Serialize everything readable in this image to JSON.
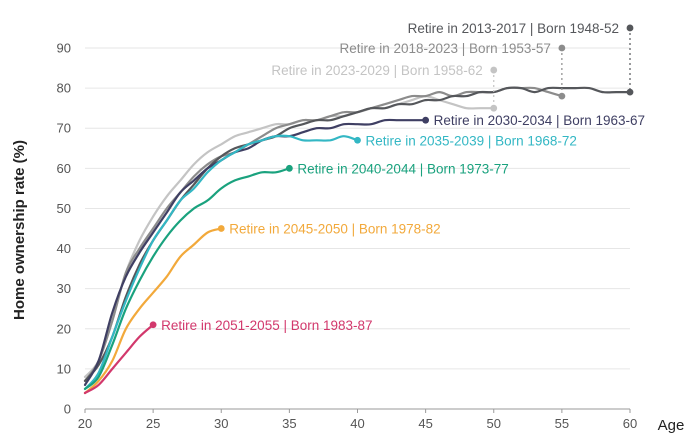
{
  "chart_data": {
    "type": "line",
    "title": "",
    "xlabel": "Age",
    "ylabel": "Home ownership rate (%)",
    "xlim": [
      20,
      60
    ],
    "ylim": [
      0,
      90
    ],
    "x_ticks": [
      20,
      25,
      30,
      35,
      40,
      45,
      50,
      55,
      60
    ],
    "y_ticks": [
      0,
      10,
      20,
      30,
      40,
      50,
      60,
      70,
      80,
      90
    ],
    "grid": "horizontal",
    "legend": "direct labels at line ends",
    "series": [
      {
        "name": "Retire in 2013-2017 | Born 1948-52",
        "color": "#55575b",
        "x": [
          20,
          21,
          22,
          23,
          24,
          25,
          26,
          27,
          28,
          29,
          30,
          31,
          32,
          33,
          34,
          35,
          36,
          37,
          38,
          39,
          40,
          41,
          42,
          43,
          44,
          45,
          46,
          47,
          48,
          49,
          50,
          51,
          52,
          53,
          54,
          55,
          56,
          57,
          58,
          59,
          60
        ],
        "y": [
          7,
          11,
          18,
          28,
          36,
          42,
          47,
          52,
          56,
          60,
          63,
          65,
          66,
          67,
          68,
          70,
          71,
          72,
          72,
          73,
          74,
          75,
          75,
          76,
          76,
          77,
          77,
          78,
          78,
          79,
          79,
          80,
          80,
          79,
          80,
          80,
          80,
          80,
          79,
          79,
          79
        ],
        "end_label_y": 95
      },
      {
        "name": "Retire in 2018-2023 | Born 1953-57",
        "color": "#8c8c8c",
        "x": [
          20,
          21,
          22,
          23,
          24,
          25,
          26,
          27,
          28,
          29,
          30,
          31,
          32,
          33,
          34,
          35,
          36,
          37,
          38,
          39,
          40,
          41,
          42,
          43,
          44,
          45,
          46,
          47,
          48,
          49,
          50,
          51,
          52,
          53,
          54,
          55
        ],
        "y": [
          7,
          12,
          22,
          34,
          40,
          45,
          50,
          54,
          58,
          61,
          63,
          64,
          66,
          68,
          70,
          71,
          72,
          72,
          73,
          74,
          74,
          75,
          76,
          77,
          78,
          78,
          79,
          78,
          79,
          79,
          79,
          80,
          80,
          80,
          79,
          78
        ],
        "end_label_y": 90
      },
      {
        "name": "Retire in 2023-2029 | Born 1958-62",
        "color": "#c4c4c4",
        "x": [
          20,
          21,
          22,
          23,
          24,
          25,
          26,
          27,
          28,
          29,
          30,
          31,
          32,
          33,
          34,
          35,
          36,
          37,
          38,
          39,
          40,
          41,
          42,
          43,
          44,
          45,
          46,
          47,
          48,
          49,
          50
        ],
        "y": [
          8,
          12,
          22,
          34,
          42,
          48,
          53,
          57,
          61,
          64,
          66,
          68,
          69,
          70,
          71,
          71,
          72,
          72,
          73,
          73,
          74,
          75,
          75,
          76,
          77,
          78,
          77,
          76,
          75,
          75,
          75
        ],
        "end_label_y": 84.5
      },
      {
        "name": "Retire in 2030-2034 | Born 1963-67",
        "color": "#3f3f63",
        "x": [
          20,
          21,
          22,
          23,
          24,
          25,
          26,
          27,
          28,
          29,
          30,
          31,
          32,
          33,
          34,
          35,
          36,
          37,
          38,
          39,
          40,
          41,
          42,
          43,
          44,
          45
        ],
        "y": [
          6,
          12,
          24,
          33,
          39,
          44,
          49,
          54,
          57,
          60,
          62,
          64,
          65,
          67,
          68,
          68,
          69,
          70,
          70,
          71,
          71,
          71,
          72,
          72,
          72,
          72
        ]
      },
      {
        "name": "Retire in 2035-2039 | Born 1968-72",
        "color": "#33b7c4",
        "x": [
          20,
          21,
          22,
          23,
          24,
          25,
          26,
          27,
          28,
          29,
          30,
          31,
          32,
          33,
          34,
          35,
          36,
          37,
          38,
          39,
          40
        ],
        "y": [
          5,
          9,
          18,
          27,
          35,
          42,
          47,
          52,
          55,
          59,
          62,
          64,
          66,
          67,
          68,
          68,
          67,
          67,
          67,
          68,
          67
        ]
      },
      {
        "name": "Retire in 2040-2044 | Born 1973-77",
        "color": "#1aa27e",
        "x": [
          20,
          21,
          22,
          23,
          24,
          25,
          26,
          27,
          28,
          29,
          30,
          31,
          32,
          33,
          34,
          35
        ],
        "y": [
          5,
          8,
          16,
          25,
          32,
          38,
          43,
          47,
          50,
          52,
          55,
          57,
          58,
          59,
          59,
          60
        ]
      },
      {
        "name": "Retire in 2045-2050 | Born 1978-82",
        "color": "#f2a93b",
        "x": [
          20,
          21,
          22,
          23,
          24,
          25,
          26,
          27,
          28,
          29,
          30
        ],
        "y": [
          4,
          7,
          12,
          20,
          25,
          29,
          33,
          38,
          41,
          44,
          45
        ]
      },
      {
        "name": "Retire in 2051-2055 | Born 1983-87",
        "color": "#d2386c",
        "x": [
          20,
          21,
          22,
          23,
          24,
          25
        ],
        "y": [
          4,
          6,
          10,
          14,
          18,
          21
        ]
      }
    ]
  }
}
